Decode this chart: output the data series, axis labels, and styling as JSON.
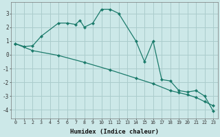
{
  "xlabel": "Humidex (Indice chaleur)",
  "bg_color": "#cce8e8",
  "grid_color": "#aacccc",
  "line_color": "#1a7a6a",
  "xlim": [
    -0.5,
    23.5
  ],
  "ylim": [
    -4.6,
    3.8
  ],
  "yticks": [
    -4,
    -3,
    -2,
    -1,
    0,
    1,
    2,
    3
  ],
  "xticks": [
    0,
    1,
    2,
    3,
    4,
    5,
    6,
    7,
    8,
    9,
    10,
    11,
    12,
    13,
    14,
    15,
    16,
    17,
    18,
    19,
    20,
    21,
    22,
    23
  ],
  "line1_x": [
    0,
    1,
    2,
    3,
    5,
    6,
    7,
    7.5,
    8,
    9,
    10,
    11,
    12,
    14,
    15,
    16,
    17,
    18,
    19,
    20,
    21,
    22,
    23
  ],
  "line1_y": [
    0.8,
    0.6,
    0.65,
    1.35,
    2.3,
    2.3,
    2.2,
    2.5,
    2.0,
    2.3,
    3.3,
    3.3,
    3.0,
    1.0,
    -0.5,
    1.0,
    -1.8,
    -1.9,
    -2.6,
    -2.7,
    -2.6,
    -3.0,
    -4.1
  ],
  "line2_x": [
    0,
    2,
    5,
    8,
    11,
    14,
    16,
    18,
    19,
    20,
    21,
    22,
    23
  ],
  "line2_y": [
    0.8,
    0.3,
    -0.05,
    -0.55,
    -1.1,
    -1.7,
    -2.1,
    -2.6,
    -2.75,
    -2.9,
    -3.1,
    -3.4,
    -3.7
  ]
}
